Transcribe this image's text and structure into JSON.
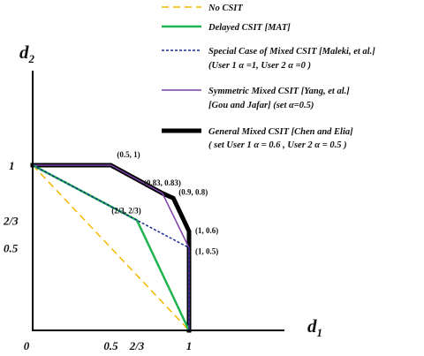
{
  "chart_data": {
    "type": "line",
    "xlabel": {
      "base": "d",
      "sub": "1"
    },
    "ylabel": {
      "base": "d",
      "sub": "2"
    },
    "x_ticks": [
      {
        "value": 0,
        "label": "0"
      },
      {
        "value": 0.5,
        "label": "0.5"
      },
      {
        "value": 0.6667,
        "label": "2/3"
      },
      {
        "value": 1,
        "label": "1"
      }
    ],
    "y_ticks": [
      {
        "value": 1,
        "label": "1"
      },
      {
        "value": 0.6667,
        "label": "2/3"
      },
      {
        "value": 0.5,
        "label": "0.5"
      }
    ],
    "xlim": [
      0,
      1.2
    ],
    "ylim": [
      0,
      1.2
    ],
    "grid": false,
    "legend_position": "top-right",
    "series": [
      {
        "name": "No CSIT",
        "color": "#f5b800",
        "dash": "dashed",
        "points": [
          [
            0,
            1
          ],
          [
            1,
            0
          ]
        ]
      },
      {
        "name": "Delayed CSIT [MAT]",
        "color": "#1fb450",
        "dash": "solid",
        "points": [
          [
            0,
            1
          ],
          [
            0.6667,
            0.6667
          ],
          [
            1,
            0
          ]
        ]
      },
      {
        "name": "Special Case of Mixed CSIT [Maleki, et al.]",
        "name_line2": "(User 1 α =1, User 2 α =0 )",
        "color": "#1a2f8f",
        "dash": "dotted",
        "points": [
          [
            0,
            1
          ],
          [
            0.6667,
            0.6667
          ],
          [
            1,
            0.5
          ],
          [
            1,
            0
          ]
        ]
      },
      {
        "name": "Symmetric Mixed CSIT [Yang, et al.]",
        "name_line2": "[Gou and Jafar] (set α=0.5)",
        "color": "#7b3fa8",
        "dash": "solid",
        "points": [
          [
            0,
            1
          ],
          [
            0.5,
            1
          ],
          [
            0.83,
            0.83
          ],
          [
            1,
            0.5
          ],
          [
            1,
            0
          ]
        ]
      },
      {
        "name": "General Mixed CSIT [Chen and Elia]",
        "name_line2": "( set User 1 α = 0.6 , User 2 α = 0.5 )",
        "color": "#000000",
        "dash": "solid",
        "points": [
          [
            0,
            1
          ],
          [
            0.5,
            1
          ],
          [
            0.83,
            0.83
          ],
          [
            0.9,
            0.8
          ],
          [
            1,
            0.6
          ],
          [
            1,
            0
          ]
        ]
      }
    ],
    "annotations": [
      {
        "text": "(0.5, 1)",
        "x": 0.5,
        "y": 1
      },
      {
        "text": "(0.83, 0.83)",
        "x": 0.83,
        "y": 0.83
      },
      {
        "text": "(0.9, 0.8)",
        "x": 0.9,
        "y": 0.8
      },
      {
        "text": "(2/3, 2/3)",
        "x": 0.6667,
        "y": 0.6667
      },
      {
        "text": "(1, 0.6)",
        "x": 1,
        "y": 0.6
      },
      {
        "text": "(1, 0.5)",
        "x": 1,
        "y": 0.5
      }
    ]
  }
}
